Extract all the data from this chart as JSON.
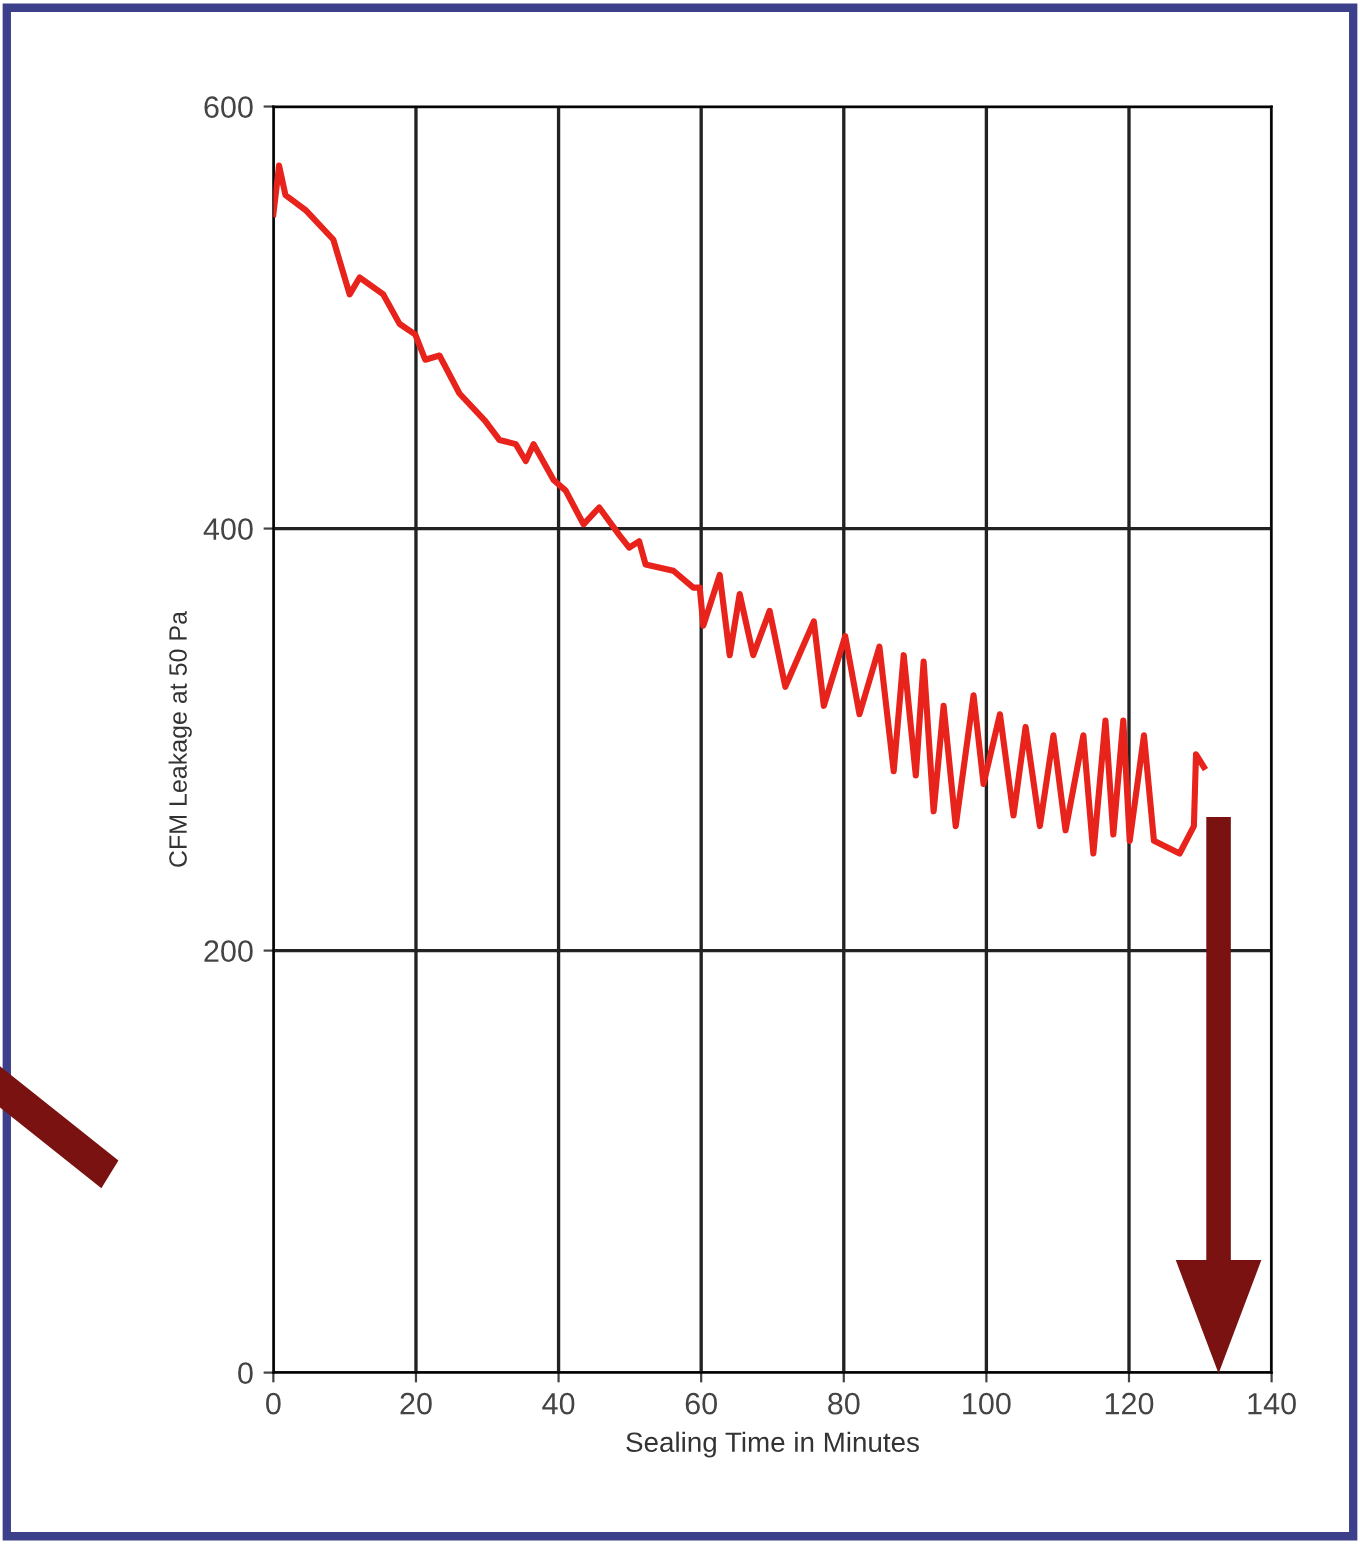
{
  "chart_data": {
    "type": "line",
    "xlabel": "Sealing Time in Minutes",
    "ylabel": "CFM Leakage at 50 Pa",
    "xlim": [
      0,
      140
    ],
    "xticks": [
      0,
      20,
      40,
      60,
      80,
      100,
      120,
      140
    ],
    "ylim": [
      0,
      600
    ],
    "yticks": [
      0,
      200,
      400,
      600
    ],
    "grid": true,
    "marker": "none",
    "line_style": "solid",
    "series": [
      {
        "color": "#e8231c",
        "x": [
          0,
          0.8,
          1.7,
          4.5,
          8.4,
          10.7,
          12.1,
          15.4,
          17.7,
          19.9,
          21.3,
          23.3,
          26.1,
          29.7,
          31.7,
          34.0,
          35.4,
          36.5,
          39.3,
          41.0,
          43.5,
          45.7,
          48.5,
          49.9,
          51.3,
          52.2,
          56.1,
          58.9,
          59.8,
          60.3,
          62.6,
          64.0,
          65.4,
          67.3,
          69.6,
          71.8,
          75.8,
          77.2,
          80.2,
          82.2,
          85.0,
          87.0,
          88.4,
          90.1,
          91.2,
          92.6,
          94.0,
          95.7,
          98.2,
          99.6,
          101.9,
          103.8,
          105.5,
          107.5,
          109.4,
          111.1,
          113.6,
          115.0,
          116.7,
          117.8,
          119.2,
          120.1,
          122.1,
          123.5,
          127.1,
          129.1,
          129.4,
          130.5
        ],
        "values": [
          549,
          572,
          558,
          551,
          537,
          511,
          519,
          511,
          497,
          492,
          480,
          482,
          464,
          451,
          442,
          440,
          432,
          440,
          423,
          418,
          402,
          410,
          397,
          391,
          394,
          383,
          380,
          372,
          372,
          354,
          378,
          340,
          369,
          340,
          361,
          325,
          356,
          316,
          349,
          312,
          344,
          285,
          340,
          283,
          337,
          266,
          316,
          259,
          321,
          279,
          312,
          264,
          306,
          259,
          302,
          257,
          302,
          246,
          309,
          255,
          309,
          252,
          302,
          252,
          246,
          259,
          293,
          287
        ]
      }
    ]
  }
}
